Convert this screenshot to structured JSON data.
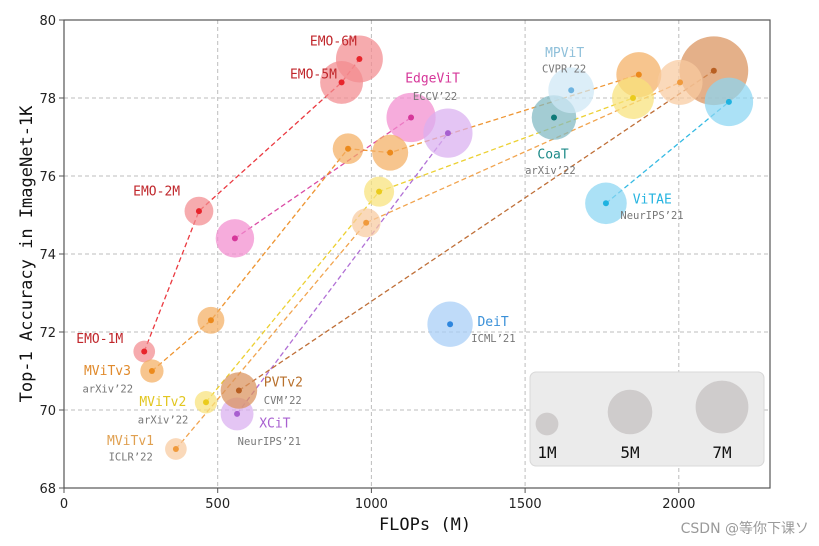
{
  "chart_data": {
    "type": "scatter",
    "title": "",
    "xlabel": "FLOPs (M)",
    "ylabel": "Top-1 Accuracy in ImageNet-1K",
    "xlim": [
      0,
      2300
    ],
    "ylim": [
      68,
      80
    ],
    "xticks": [
      0,
      500,
      1000,
      1500,
      2000
    ],
    "yticks": [
      68,
      70,
      72,
      74,
      76,
      78,
      80
    ],
    "grid": true,
    "bubble_size_meaning": "Params (M)",
    "legend": {
      "placement": "bottom-right",
      "entries": [
        {
          "label": "1M",
          "params": 1
        },
        {
          "label": "5M",
          "params": 5
        },
        {
          "label": "7M",
          "params": 7
        }
      ]
    },
    "series": [
      {
        "name": "EMO",
        "venue": "",
        "color": "#e8242b",
        "bubble": "#f28b8f",
        "points": [
          {
            "x": 261,
            "y": 71.5,
            "params": 1.3,
            "label": "EMO-1M"
          },
          {
            "x": 439,
            "y": 75.1,
            "params": 2.3,
            "label": "EMO-2M"
          },
          {
            "x": 903,
            "y": 78.4,
            "params": 5.1,
            "label": "EMO-5M"
          },
          {
            "x": 961,
            "y": 79.0,
            "params": 6.1,
            "label": "EMO-6M"
          }
        ]
      },
      {
        "name": "EdgeViT",
        "venue": "ECCV’22",
        "color": "#d6379a",
        "bubble": "#f28ccf",
        "points": [
          {
            "x": 556,
            "y": 74.4,
            "params": 4.1
          },
          {
            "x": 1129,
            "y": 77.5,
            "params": 6.7
          }
        ]
      },
      {
        "name": "XCiT",
        "venue": "NeurIPS’21",
        "color": "#a860d0",
        "bubble": "#d9aef0",
        "points": [
          {
            "x": 563,
            "y": 69.9,
            "params": 3.0
          },
          {
            "x": 1249,
            "y": 77.1,
            "params": 6.7
          }
        ]
      },
      {
        "name": "PVTv2",
        "venue": "CVM’22",
        "color": "#b85f22",
        "bubble": "#d9925c",
        "points": [
          {
            "x": 569,
            "y": 70.5,
            "params": 3.7
          },
          {
            "x": 2114,
            "y": 78.7,
            "params": 13.1
          }
        ]
      },
      {
        "name": "MViTv3",
        "venue": "arXiv’22",
        "color": "#ec8a1c",
        "bubble": "#f4ae62",
        "points": [
          {
            "x": 286,
            "y": 71.0,
            "params": 1.5
          },
          {
            "x": 478,
            "y": 72.3,
            "params": 2.0
          },
          {
            "x": 924,
            "y": 76.7,
            "params": 2.6
          },
          {
            "x": 1061,
            "y": 76.6,
            "params": 3.6
          },
          {
            "x": 1870,
            "y": 78.6,
            "params": 5.6
          }
        ]
      },
      {
        "name": "MViTv2",
        "venue": "arXiv’22",
        "color": "#eacb1c",
        "bubble": "#f8e27a",
        "points": [
          {
            "x": 462,
            "y": 70.2,
            "params": 1.4
          },
          {
            "x": 1025,
            "y": 75.6,
            "params": 2.5
          },
          {
            "x": 1851,
            "y": 78.0,
            "params": 4.9
          }
        ]
      },
      {
        "name": "MViTv1",
        "venue": "ICLR’22",
        "color": "#f09a3c",
        "bubble": "#f8caa0",
        "points": [
          {
            "x": 364,
            "y": 69.0,
            "params": 1.3
          },
          {
            "x": 983,
            "y": 74.8,
            "params": 2.3
          },
          {
            "x": 2004,
            "y": 78.4,
            "params": 5.6
          }
        ]
      },
      {
        "name": "CoaT",
        "venue": "arXiv’22",
        "color": "#0f7a78",
        "bubble": "#7fb9c2",
        "points": [
          {
            "x": 1594,
            "y": 77.5,
            "params": 5.5
          }
        ]
      },
      {
        "name": "MPViT",
        "venue": "CVPR’22",
        "color": "#6db3e0",
        "bubble": "#cfe7f5",
        "points": [
          {
            "x": 1650,
            "y": 78.2,
            "params": 5.8
          }
        ]
      },
      {
        "name": "ViTAE",
        "venue": "NeurIPS’21",
        "color": "#1fb2e0",
        "bubble": "#8ad6f2",
        "points": [
          {
            "x": 1763,
            "y": 75.3,
            "params": 4.8
          },
          {
            "x": 2163,
            "y": 77.9,
            "params": 6.5
          }
        ]
      },
      {
        "name": "DeiT",
        "venue": "ICML’21",
        "color": "#2e86de",
        "bubble": "#a6cdf6",
        "points": [
          {
            "x": 1256,
            "y": 72.2,
            "params": 5.7
          }
        ]
      }
    ],
    "labels": [
      {
        "text": "EMO-6M",
        "x": 800,
        "y": 79.35,
        "color": "#c0262b",
        "kind": "name"
      },
      {
        "text": "EMO-5M",
        "x": 735,
        "y": 78.5,
        "color": "#c0262b",
        "kind": "name"
      },
      {
        "text": "EMO-2M",
        "x": 225,
        "y": 75.5,
        "color": "#c0262b",
        "kind": "name"
      },
      {
        "text": "EMO-1M",
        "x": 40,
        "y": 71.72,
        "color": "#c0262b",
        "kind": "name"
      },
      {
        "text": "EdgeViT",
        "x": 1110,
        "y": 78.4,
        "color": "#d6379a",
        "kind": "name"
      },
      {
        "text": "ECCV’22",
        "x": 1135,
        "y": 77.95,
        "color": "#777777",
        "kind": "venue"
      },
      {
        "text": "MViTv3",
        "x": 65,
        "y": 70.9,
        "color": "#e08a2c",
        "kind": "name"
      },
      {
        "text": "arXiv’22",
        "x": 60,
        "y": 70.45,
        "color": "#777777",
        "kind": "venue"
      },
      {
        "text": "MViTv2",
        "x": 245,
        "y": 70.1,
        "color": "#e2c620",
        "kind": "name"
      },
      {
        "text": "arXiv’22",
        "x": 240,
        "y": 69.65,
        "color": "#777777",
        "kind": "venue"
      },
      {
        "text": "MViTv1",
        "x": 140,
        "y": 69.1,
        "color": "#e0a050",
        "kind": "name"
      },
      {
        "text": "ICLR’22",
        "x": 145,
        "y": 68.7,
        "color": "#777777",
        "kind": "venue"
      },
      {
        "text": "PVTv2",
        "x": 650,
        "y": 70.6,
        "color": "#b8702c",
        "kind": "name"
      },
      {
        "text": "CVM’22",
        "x": 650,
        "y": 70.15,
        "color": "#777777",
        "kind": "venue"
      },
      {
        "text": "XCiT",
        "x": 635,
        "y": 69.55,
        "color": "#a860d0",
        "kind": "name"
      },
      {
        "text": "NeurIPS’21",
        "x": 565,
        "y": 69.1,
        "color": "#777777",
        "kind": "venue"
      },
      {
        "text": "MPViT",
        "x": 1565,
        "y": 79.05,
        "color": "#8fc0da",
        "kind": "name"
      },
      {
        "text": "CVPR’22",
        "x": 1555,
        "y": 78.65,
        "color": "#777777",
        "kind": "venue"
      },
      {
        "text": "CoaT",
        "x": 1540,
        "y": 76.45,
        "color": "#1c8a88",
        "kind": "name"
      },
      {
        "text": "arXiv’22",
        "x": 1500,
        "y": 76.05,
        "color": "#777777",
        "kind": "venue"
      },
      {
        "text": "ViTAE",
        "x": 1850,
        "y": 75.3,
        "color": "#27b4e0",
        "kind": "name"
      },
      {
        "text": "NeurIPS’21",
        "x": 1810,
        "y": 74.9,
        "color": "#777777",
        "kind": "venue"
      },
      {
        "text": "DeiT",
        "x": 1345,
        "y": 72.15,
        "color": "#3a90d8",
        "kind": "name"
      },
      {
        "text": "ICML’21",
        "x": 1325,
        "y": 71.75,
        "color": "#777777",
        "kind": "venue"
      }
    ]
  },
  "watermark": "CSDN @等你下课ソ"
}
